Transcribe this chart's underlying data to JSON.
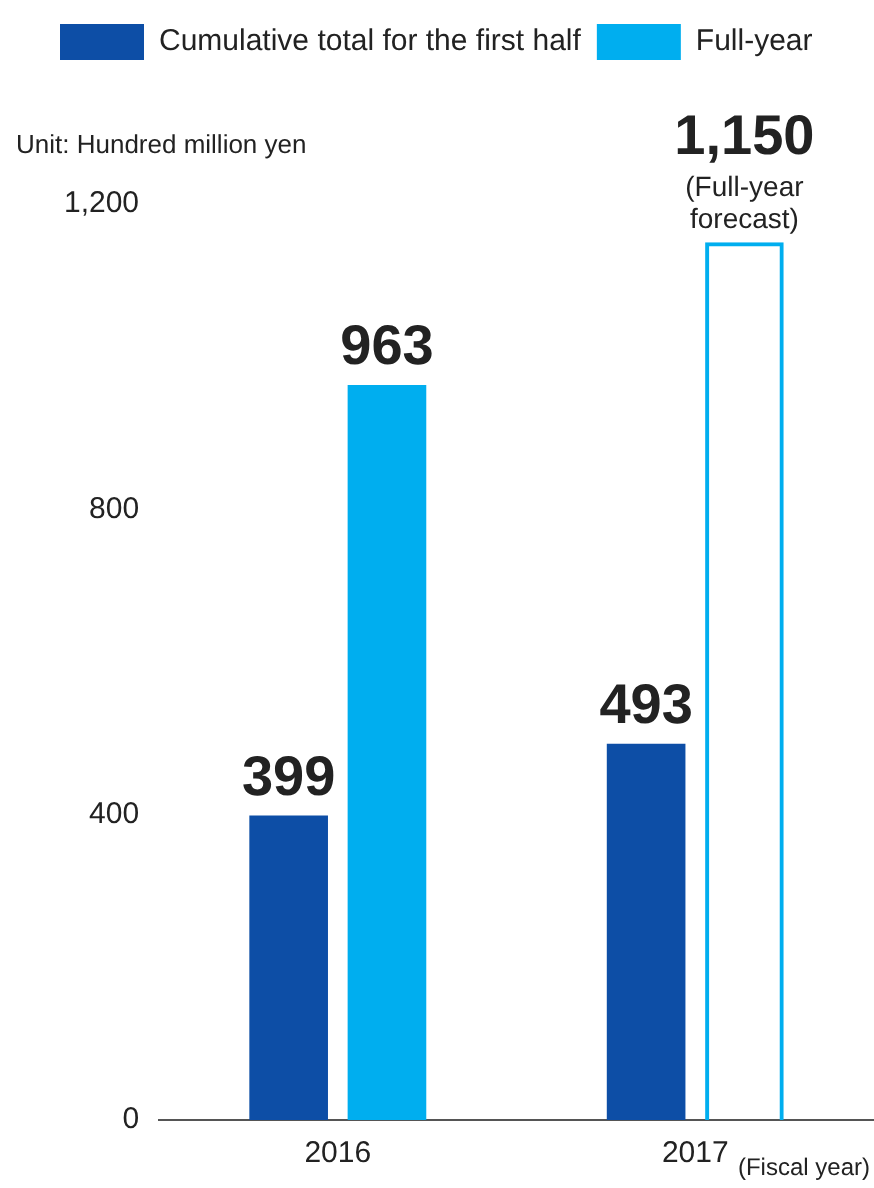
{
  "chart_data": {
    "type": "bar",
    "ylabel": "Unit: Hundred million yen",
    "xlabel": "(Fiscal year)",
    "categories": [
      "2016",
      "2017"
    ],
    "series": [
      {
        "name": "Cumulative total for the first half",
        "color": "#0d4ea6",
        "values": [
          399,
          493
        ],
        "value_labels": [
          "399",
          "493"
        ]
      },
      {
        "name": "Full-year",
        "color": "#00aeef",
        "values": [
          963,
          null
        ],
        "value_labels": [
          "963",
          null
        ]
      },
      {
        "color": "#00aeef",
        "values": [
          null,
          1150
        ],
        "value_labels": [
          null,
          "1,150"
        ],
        "line_style": "dashed"
      }
    ],
    "ylim": [
      0,
      1200
    ],
    "yticks": [
      0,
      400,
      800,
      {
        "value": 1200,
        "label": "1,200"
      }
    ],
    "grid": false,
    "legend": "top left",
    "annotations": [
      {
        "text": "(Full-year forecast)",
        "x": "2017",
        "y": 1150
      }
    ]
  }
}
